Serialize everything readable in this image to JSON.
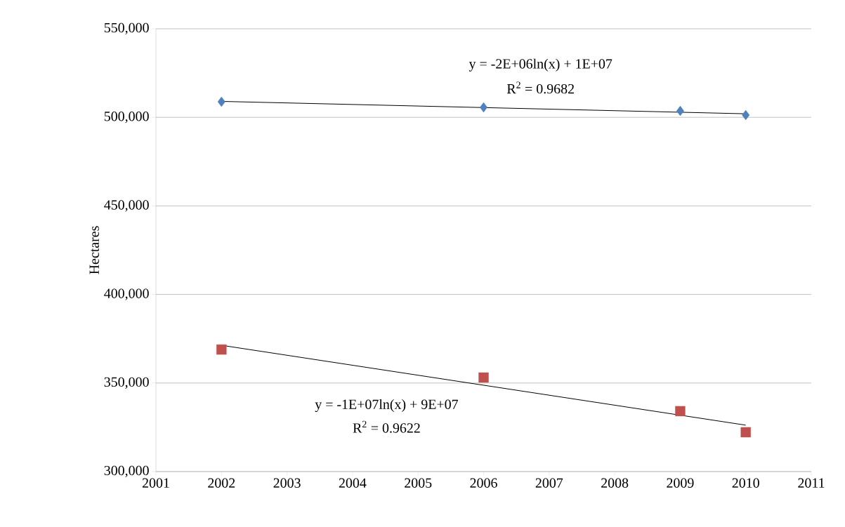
{
  "chart_data": {
    "type": "scatter",
    "ylabel": "Hectares",
    "xlim": [
      2001,
      2011
    ],
    "xticks": [
      2001,
      2002,
      2003,
      2004,
      2005,
      2006,
      2007,
      2008,
      2009,
      2010,
      2011
    ],
    "ylim": [
      300000,
      550000
    ],
    "yticks": [
      {
        "value": 300000,
        "label": "300,000"
      },
      {
        "value": 350000,
        "label": "350,000"
      },
      {
        "value": 400000,
        "label": "400,000"
      },
      {
        "value": 450000,
        "label": "450,000"
      },
      {
        "value": 500000,
        "label": "500,000"
      },
      {
        "value": 550000,
        "label": "550,000"
      }
    ],
    "grid": "y",
    "series": [
      {
        "color": "#4f81bd",
        "marker": "diamond",
        "x": [
          2002,
          2006,
          2009,
          2010
        ],
        "values": [
          508800,
          505600,
          503600,
          501300
        ]
      },
      {
        "color": "#c0504d",
        "marker": "square",
        "x": [
          2002,
          2006,
          2009,
          2010
        ],
        "values": [
          368900,
          353100,
          334100,
          322200
        ]
      },
      {
        "type": "line",
        "color": "#000000",
        "marker": "none",
        "line_style": "solid",
        "x": [
          2002,
          2010
        ],
        "values": [
          509000,
          502000
        ]
      },
      {
        "type": "line",
        "color": "#000000",
        "marker": "none",
        "line_style": "solid",
        "x": [
          2002,
          2010
        ],
        "values": [
          371300,
          326200
        ]
      }
    ],
    "annotations": [
      "y = -2E+06ln(x) + 1E+07",
      "R$^{2}$ = 0.9682",
      "y = -1E+07ln(x) + 9E+07",
      "R$^{2}$ = 0.9622"
    ]
  }
}
